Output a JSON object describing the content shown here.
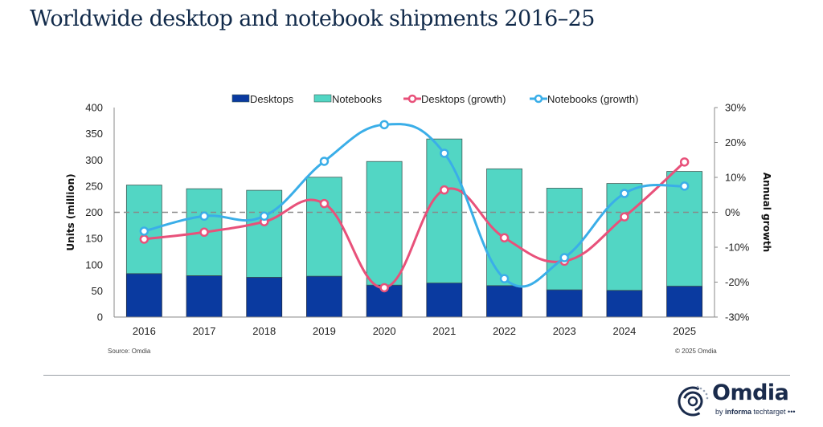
{
  "header": {
    "title": "Worldwide desktop and notebook shipments 2016–25"
  },
  "footer": {
    "source": "Source: Omdia",
    "copyright": "© 2025 Omdia",
    "logo_word": "Omdia",
    "logo_by": "by ",
    "logo_informa": "informa",
    "logo_techtarget": " techtarget •••"
  },
  "colors": {
    "desktops": "#0a3aa0",
    "notebooks": "#52d6c4",
    "desktops_growth": "#e8517a",
    "notebooks_growth": "#3aaee8",
    "title": "#112a4a"
  },
  "chart_data": {
    "type": "bar",
    "subtype": "stacked-bar-with-dual-axis-lines",
    "title": "Worldwide desktop and notebook shipments 2016–25",
    "categories": [
      "2016",
      "2017",
      "2018",
      "2019",
      "2020",
      "2021",
      "2022",
      "2023",
      "2024",
      "2025"
    ],
    "series": [
      {
        "name": "Desktops",
        "kind": "bar",
        "axis": "left",
        "values": [
          83,
          79,
          76,
          78,
          61,
          65,
          60,
          52,
          51,
          59
        ]
      },
      {
        "name": "Notebooks",
        "kind": "bar",
        "axis": "left",
        "values": [
          169,
          166,
          166,
          189,
          236,
          275,
          223,
          194,
          204,
          219
        ]
      },
      {
        "name": "Desktops (growth)",
        "kind": "line",
        "axis": "right",
        "values": [
          -7.7,
          -5.7,
          -2.7,
          2.5,
          -21.6,
          6.4,
          -7.3,
          -14.0,
          -1.3,
          14.4
        ]
      },
      {
        "name": "Notebooks (growth)",
        "kind": "line",
        "axis": "right",
        "values": [
          -5.4,
          -1.1,
          -1.1,
          14.6,
          25.1,
          16.9,
          -19.0,
          -13.0,
          5.4,
          7.5
        ]
      }
    ],
    "ylabel": "Units (million)",
    "y2label": "Annual growth",
    "xlabel": "",
    "ylim": [
      0,
      400
    ],
    "y2lim": [
      -30,
      30
    ],
    "yticks": [
      "0",
      "50",
      "100",
      "150",
      "200",
      "250",
      "300",
      "350",
      "400"
    ],
    "y2ticks": [
      "-30%",
      "-20%",
      "-10%",
      "0%",
      "10%",
      "20%",
      "30%"
    ],
    "legend": [
      "Desktops",
      "Notebooks",
      "Desktops (growth)",
      "Notebooks (growth)"
    ],
    "legend_position": "top",
    "grid": false,
    "reference_line": "0% growth (dashed)"
  }
}
